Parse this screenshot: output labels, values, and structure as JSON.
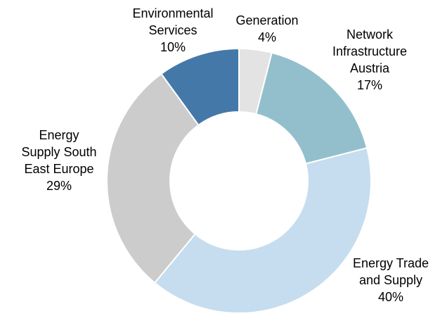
{
  "chart_data": {
    "type": "pie",
    "donut": true,
    "title": "",
    "slices": [
      {
        "label_lines": [
          "Generation",
          "4%"
        ],
        "value": 4,
        "color": "#e3e3e3"
      },
      {
        "label_lines": [
          "Network",
          "Infrastructure",
          "Austria",
          "17%"
        ],
        "value": 17,
        "color": "#93bfcc"
      },
      {
        "label_lines": [
          "Energy Trade",
          "and Supply",
          "40%"
        ],
        "value": 40,
        "color": "#c5ddee"
      },
      {
        "label_lines": [
          "Energy",
          "Supply South",
          "East Europe",
          "29%"
        ],
        "value": 29,
        "color": "#cccccc"
      },
      {
        "label_lines": [
          "Environmental",
          "Services",
          "10%"
        ],
        "value": 10,
        "color": "#4478a8"
      }
    ],
    "start_angle_deg": 0,
    "direction": "clockwise"
  }
}
